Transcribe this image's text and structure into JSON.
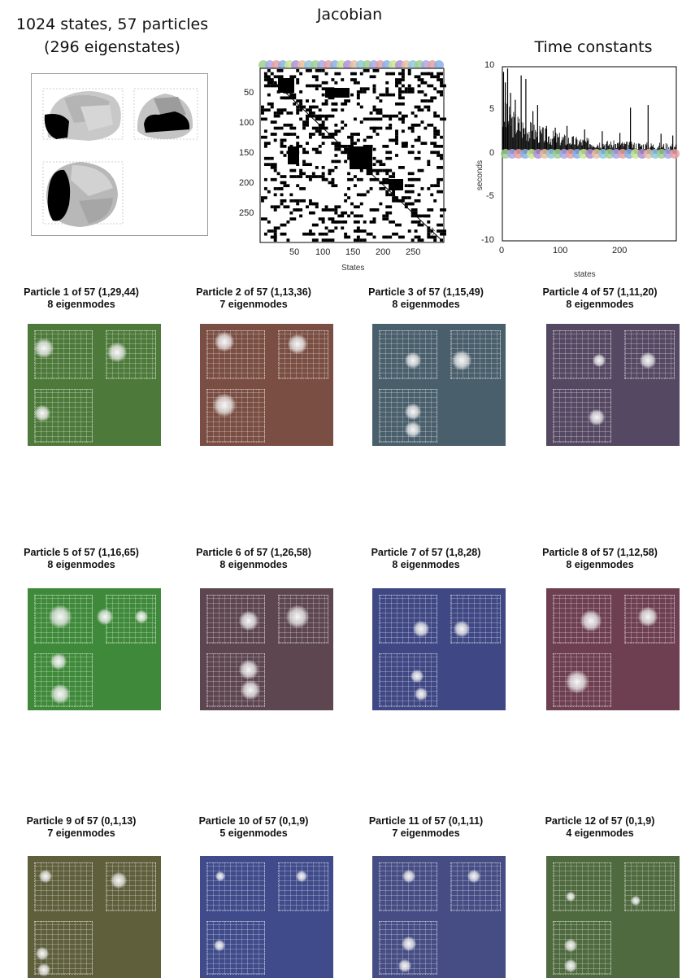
{
  "header": {
    "summary_line1": "1024 states, 57 particles",
    "summary_line2": "(296 eigenstates)",
    "jacobian_title": "Jacobian",
    "time_title": "Time constants"
  },
  "jacobian": {
    "yticks": [
      "50",
      "100",
      "150",
      "200",
      "250"
    ],
    "xticks": [
      "50",
      "100",
      "150",
      "200",
      "250"
    ],
    "xlabel": "States",
    "corner_label": "57"
  },
  "time_constants": {
    "yticks": [
      "10",
      "5",
      "0",
      "-5",
      "-10"
    ],
    "xticks": [
      "0",
      "100",
      "200"
    ],
    "ylabel": "seconds",
    "xlabel": "states"
  },
  "chart_data": {
    "type": "bar",
    "title": "Time constants",
    "xlabel": "states",
    "ylabel": "seconds",
    "xlim": [
      0,
      296
    ],
    "ylim": [
      -10,
      10
    ],
    "peaks": [
      {
        "x": 2,
        "y": 9.4
      },
      {
        "x": 5,
        "y": 8.2
      },
      {
        "x": 9,
        "y": 9.8
      },
      {
        "x": 14,
        "y": 7.0
      },
      {
        "x": 22,
        "y": 6.2
      },
      {
        "x": 32,
        "y": 9.0
      },
      {
        "x": 40,
        "y": 8.6
      },
      {
        "x": 52,
        "y": 4.9
      },
      {
        "x": 60,
        "y": 5.6
      },
      {
        "x": 75,
        "y": 3.2
      },
      {
        "x": 90,
        "y": 3.0
      },
      {
        "x": 110,
        "y": 3.2
      },
      {
        "x": 140,
        "y": 2.8
      },
      {
        "x": 170,
        "y": 2.6
      },
      {
        "x": 200,
        "y": 2.4
      },
      {
        "x": 218,
        "y": 5.3
      },
      {
        "x": 248,
        "y": 5.6
      },
      {
        "x": 270,
        "y": 2.3
      },
      {
        "x": 290,
        "y": 2.1
      }
    ]
  },
  "particles": [
    {
      "title": "Particle 1 of 57 (1,29,44)",
      "modes": "8 eigenmodes",
      "color": "#4d7a3a"
    },
    {
      "title": "Particle 2 of 57 (1,13,36)",
      "modes": "7 eigenmodes",
      "color": "#7a4e42"
    },
    {
      "title": "Particle 3 of 57 (1,15,49)",
      "modes": "8 eigenmodes",
      "color": "#4a5f6c"
    },
    {
      "title": "Particle 4 of 57 (1,11,20)",
      "modes": "8 eigenmodes",
      "color": "#554862"
    },
    {
      "title": "Particle 5 of 57 (1,16,65)",
      "modes": "8 eigenmodes",
      "color": "#3f8a3a"
    },
    {
      "title": "Particle 6 of 57 (1,26,58)",
      "modes": "8 eigenmodes",
      "color": "#5d4650"
    },
    {
      "title": "Particle 7 of 57 (1,8,28)",
      "modes": "8 eigenmodes",
      "color": "#3f4884"
    },
    {
      "title": "Particle 8 of 57 (1,12,58)",
      "modes": "8 eigenmodes",
      "color": "#6e3f50"
    },
    {
      "title": "Particle 9 of 57 (0,1,13)",
      "modes": "7 eigenmodes",
      "color": "#5f5f3c"
    },
    {
      "title": "Particle 10 of 57 (0,1,9)",
      "modes": "5 eigenmodes",
      "color": "#3f4b8a"
    },
    {
      "title": "Particle 11 of 57 (0,1,11)",
      "modes": "7 eigenmodes",
      "color": "#454d84"
    },
    {
      "title": "Particle 12 of 57 (0,1,9)",
      "modes": "4 eigenmodes",
      "color": "#4f6a3e"
    }
  ]
}
